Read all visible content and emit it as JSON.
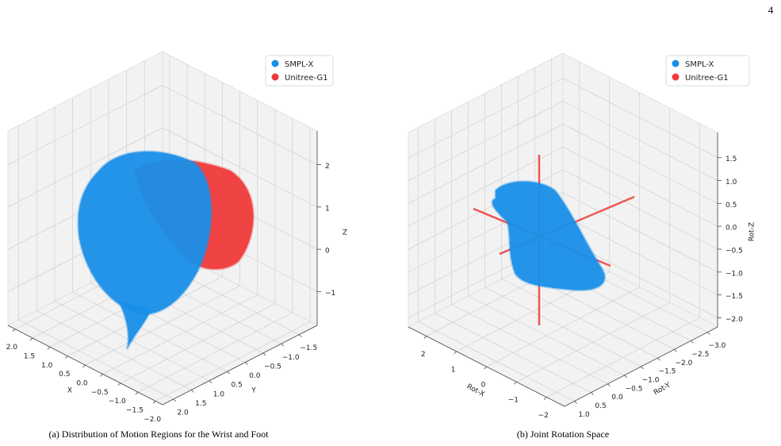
{
  "page_number": "4",
  "chart_data": [
    {
      "type": "scatter3d",
      "caption": "(a) Distribution of Motion Regions for the Wrist and Foot",
      "xlabel": "X",
      "ylabel": "Y",
      "zlabel": "Z",
      "legend": "upper right",
      "grid": true,
      "series": [
        {
          "name": "SMPL-X",
          "color": "#1a8fe8"
        },
        {
          "name": "Unitree-G1",
          "color": "#f03a3a"
        }
      ],
      "xlim": [
        2.2,
        -2.2
      ],
      "ylim": [
        2.3,
        -2.0
      ],
      "zlim": [
        -1.8,
        2.8
      ],
      "xticks": [
        {
          "value": 2,
          "label": "2.0"
        },
        1.5,
        {
          "value": 1,
          "label": "1.0"
        },
        0.5,
        {
          "value": 0,
          "label": "0.0"
        },
        {
          "value": -0.5,
          "label": "−0.5"
        },
        {
          "value": -1,
          "label": "−1.0"
        },
        {
          "value": -1.5,
          "label": "−1.5"
        },
        {
          "value": -2,
          "label": "−2.0"
        }
      ],
      "yticks": [
        {
          "value": 2,
          "label": "2.0"
        },
        1.5,
        {
          "value": 1,
          "label": "1.0"
        },
        0.5,
        {
          "value": 0,
          "label": "0.0"
        },
        {
          "value": -0.5,
          "label": "−0.5"
        },
        {
          "value": -1,
          "label": "−1.0"
        },
        {
          "value": -1.5,
          "label": "−1.5"
        }
      ],
      "zticks": [
        {
          "value": -1,
          "label": "−1"
        },
        0,
        1,
        2
      ]
    },
    {
      "type": "scatter3d",
      "caption": "(b) Joint Rotation Space",
      "xlabel": "Rot-X",
      "ylabel": "Rot-Y",
      "zlabel": "Rot-Z",
      "legend": "upper right",
      "grid": true,
      "series": [
        {
          "name": "SMPL-X",
          "color": "#1a8fe8"
        },
        {
          "name": "Unitree-G1",
          "color": "#f03a3a"
        }
      ],
      "xlim": [
        2.6,
        -2.6
      ],
      "ylim": [
        1.3,
        -3.3
      ],
      "zlim": [
        -2.2,
        2.05
      ],
      "xticks": [
        2,
        1,
        0,
        {
          "value": -1,
          "label": "−1"
        },
        {
          "value": -2,
          "label": "−2"
        }
      ],
      "yticks": [
        {
          "value": 1,
          "label": "1.0"
        },
        0.5,
        {
          "value": 0,
          "label": "0.0"
        },
        {
          "value": -0.5,
          "label": "−0.5"
        },
        {
          "value": -1,
          "label": "−1.0"
        },
        {
          "value": -1.5,
          "label": "−1.5"
        },
        {
          "value": -2,
          "label": "−2.0"
        },
        {
          "value": -2.5,
          "label": "−2.5"
        },
        {
          "value": -3,
          "label": "−3.0"
        }
      ],
      "zticks": [
        1.5,
        {
          "value": 1,
          "label": "1.0"
        },
        0.5,
        {
          "value": 0,
          "label": "0.0"
        },
        {
          "value": -0.5,
          "label": "−0.5"
        },
        {
          "value": -1,
          "label": "−1.0"
        },
        {
          "value": -1.5,
          "label": "−1.5"
        },
        {
          "value": -2,
          "label": "−2.0"
        }
      ]
    }
  ]
}
